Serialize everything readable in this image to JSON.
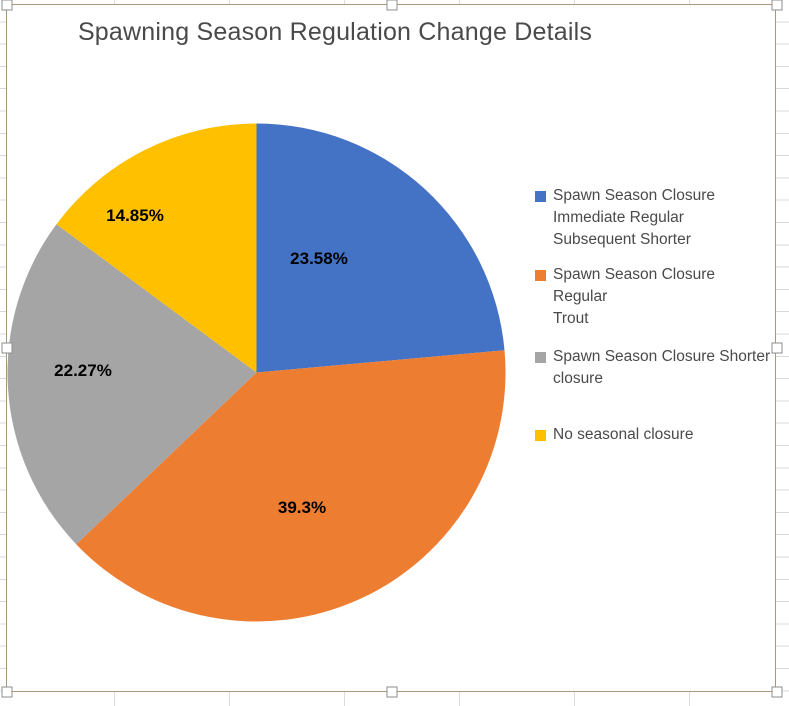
{
  "excel": {
    "chart_selected": true,
    "selection_handle_count": 8
  },
  "chart_data": {
    "type": "pie",
    "title": "Spawning Season Regulation Change Details",
    "labels": [
      "Spawn Season Closure\nImmediate Regular\nSubsequent Shorter",
      "Spawn Season Closure Regular\nTrout",
      "Spawn Season Closure Shorter\nclosure",
      "No seasonal closure"
    ],
    "values": [
      23.58,
      39.3,
      22.27,
      14.85
    ],
    "value_labels": [
      "23.58%",
      "39.3%",
      "22.27%",
      "14.85%"
    ],
    "colors": [
      "#4472C4",
      "#ED7D31",
      "#A5A5A5",
      "#FFC000"
    ],
    "units": "percent",
    "legend_position": "right",
    "start_angle_deg": 0,
    "direction": "clockwise",
    "label_text_color": "#000000",
    "title_text_color": "#4a4a4a"
  }
}
